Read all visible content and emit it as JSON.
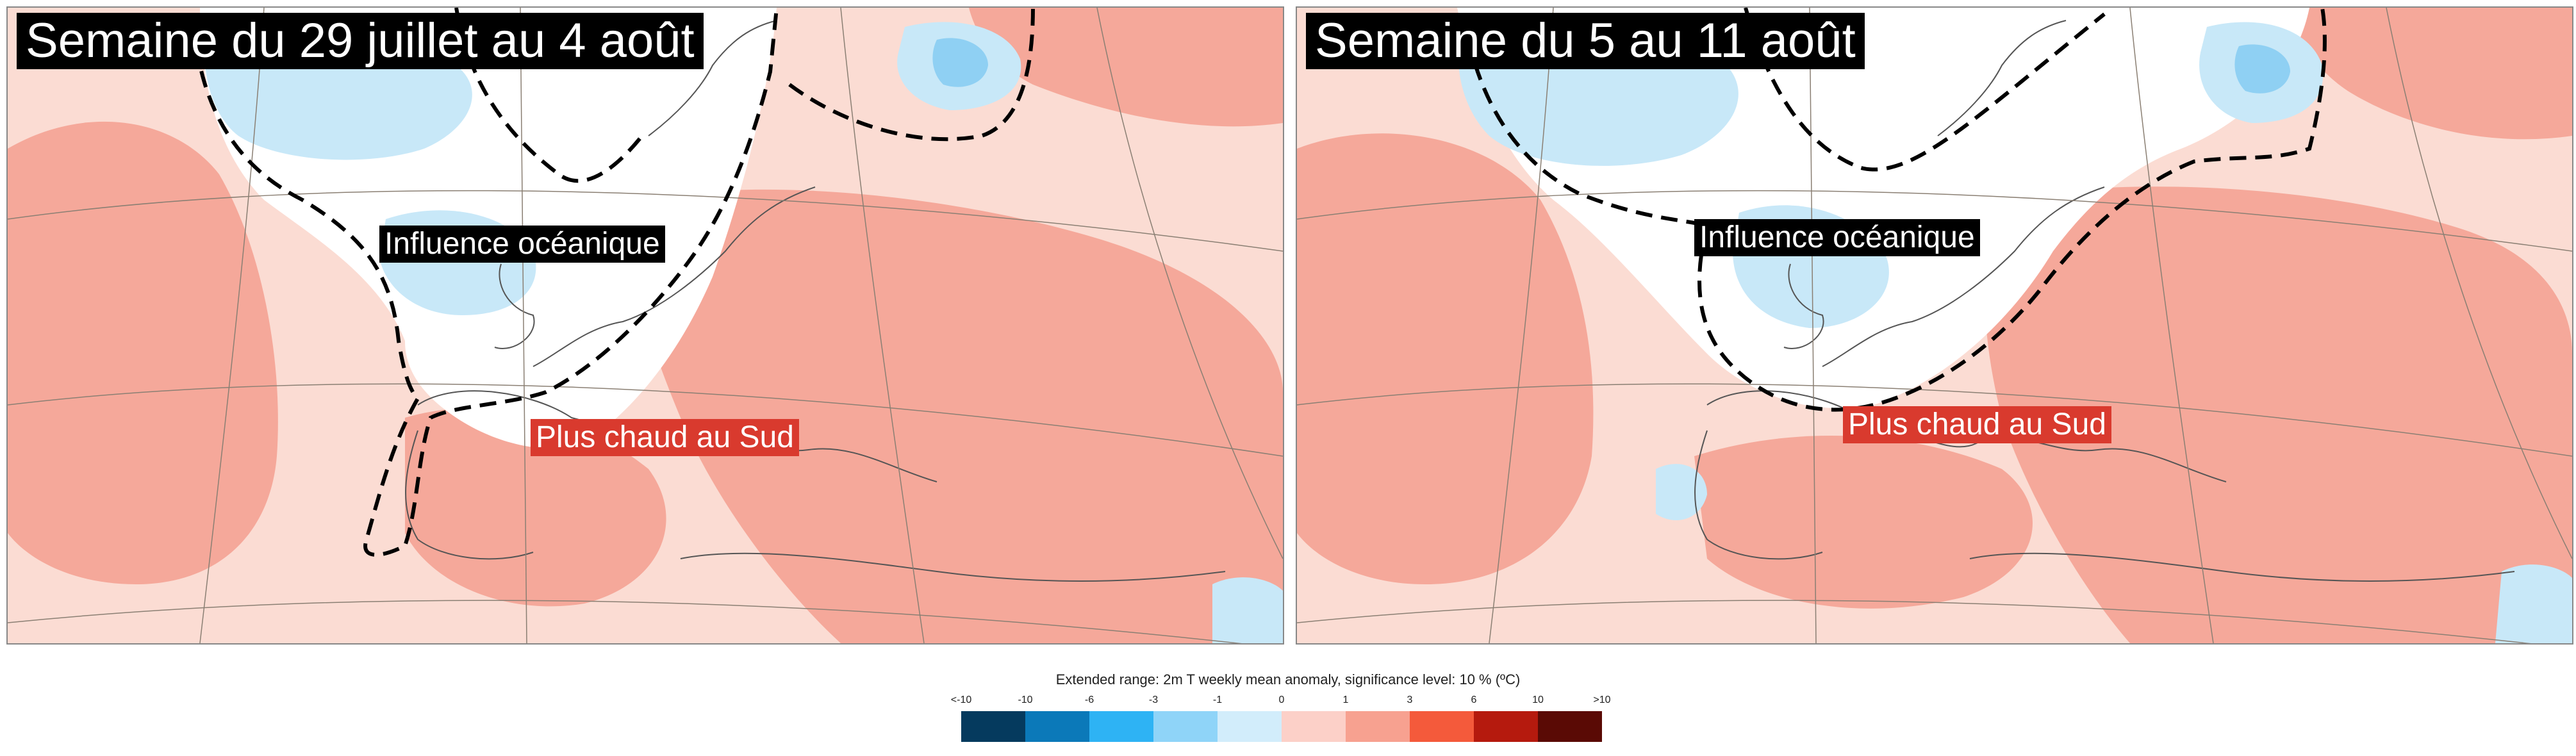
{
  "maps": [
    {
      "title": "Semaine du 29 juillet au 4 août",
      "label_ocean": "Influence océanique",
      "label_hot": "Plus chaud au Sud"
    },
    {
      "title": "Semaine du 5 au 11 août",
      "label_ocean": "Influence océanique",
      "label_hot": "Plus chaud au Sud"
    }
  ],
  "legend": {
    "title": "Extended range: 2m T weekly mean anomaly, significance level: 10 % (ºC)",
    "ticks": [
      "<-10",
      "-10",
      "-6",
      "-3",
      "-1",
      "0",
      "1",
      "3",
      "6",
      "10",
      ">10"
    ],
    "colors": [
      "#053a5e",
      "#0b79b9",
      "#2eb3f4",
      "#8fd4f8",
      "#d2edfb",
      "#fcd0c8",
      "#f7a190",
      "#f45a3b",
      "#b51a0e",
      "#5a0a05"
    ]
  },
  "colors": {
    "warm_light": "#fbdcd3",
    "warm_medium": "#f5a89a",
    "cold_light": "#c8e8f8",
    "cold_medium": "#8fd0f3",
    "neutral": "#ffffff",
    "hot_label": "#d93a2e"
  }
}
